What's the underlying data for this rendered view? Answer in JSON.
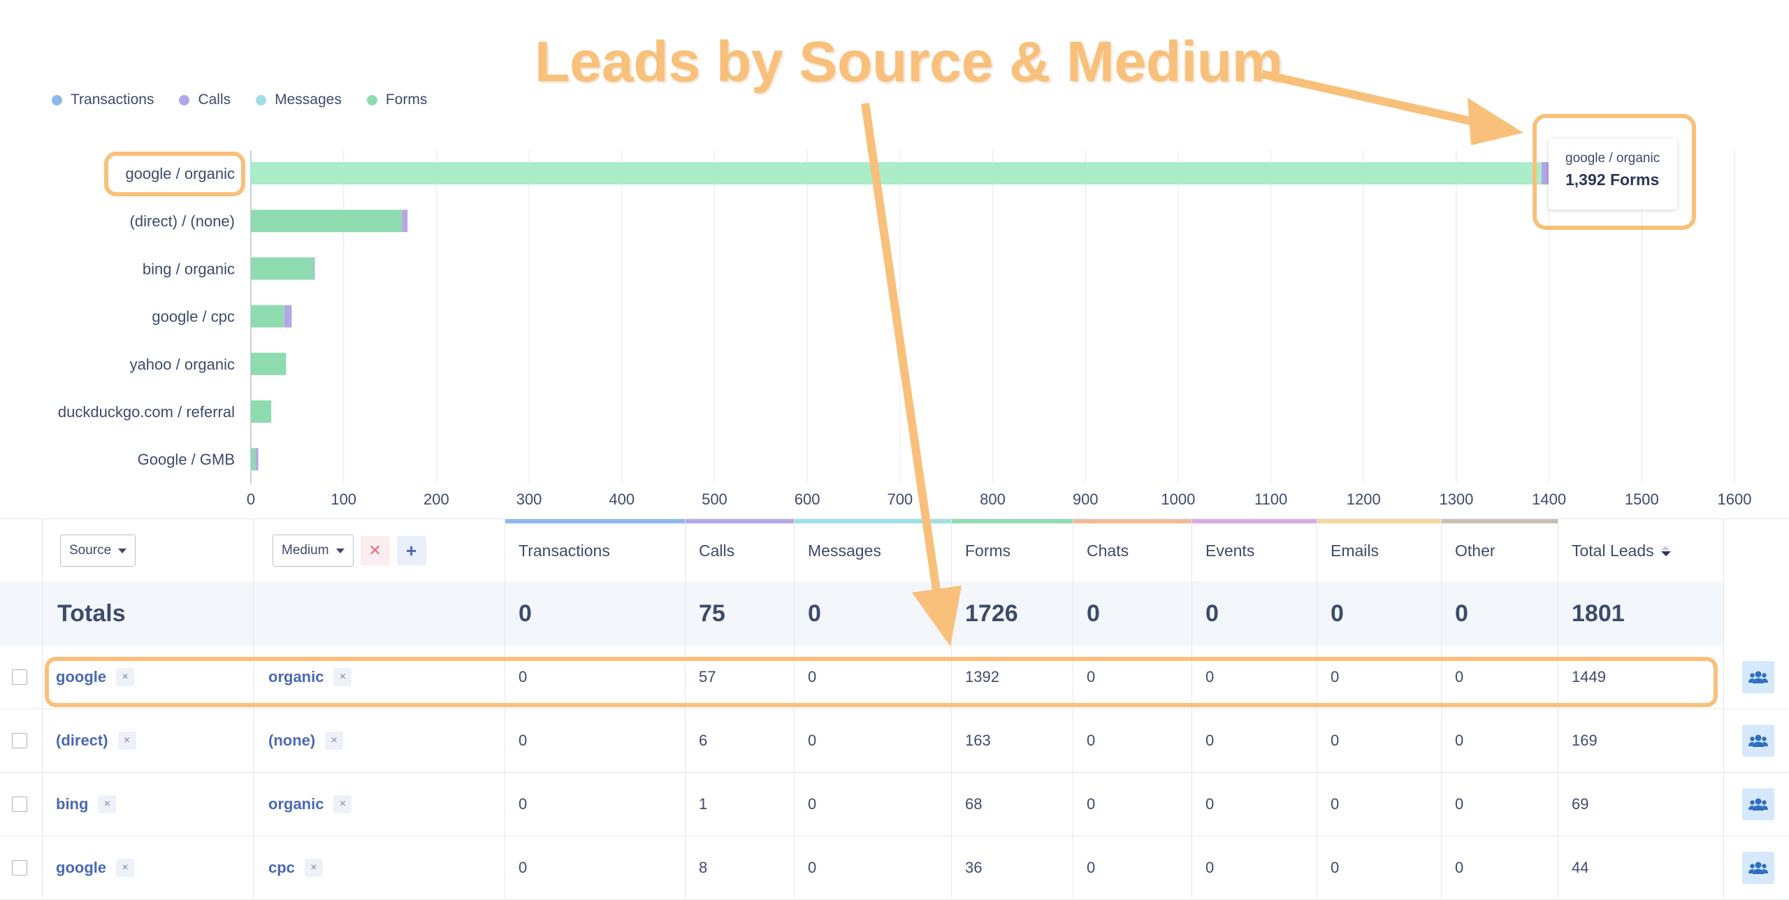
{
  "annotation": {
    "title": "Leads by Source & Medium"
  },
  "legend": [
    {
      "label": "Transactions",
      "color": "#8fb8ea"
    },
    {
      "label": "Calls",
      "color": "#b4a6e6"
    },
    {
      "label": "Messages",
      "color": "#9fdfe6"
    },
    {
      "label": "Forms",
      "color": "#8fdbb0"
    }
  ],
  "tooltip": {
    "line1": "google / organic",
    "line2": "1,392 Forms"
  },
  "chart_data": {
    "type": "bar",
    "orientation": "horizontal",
    "stacked": true,
    "categories": [
      "google / organic",
      "(direct) / (none)",
      "bing / organic",
      "google / cpc",
      "yahoo / organic",
      "duckduckgo.com / referral",
      "Google / GMB"
    ],
    "series": [
      {
        "name": "Transactions",
        "values": [
          0,
          0,
          0,
          0,
          0,
          0,
          0
        ]
      },
      {
        "name": "Forms",
        "values": [
          1392,
          163,
          68,
          36,
          38,
          22,
          5
        ]
      },
      {
        "name": "Calls",
        "values": [
          57,
          6,
          1,
          8,
          0,
          0,
          3
        ]
      },
      {
        "name": "Messages",
        "values": [
          0,
          0,
          0,
          0,
          0,
          0,
          0
        ]
      }
    ],
    "xticks": [
      "0",
      "100",
      "200",
      "300",
      "400",
      "500",
      "600",
      "700",
      "800",
      "900",
      "1000",
      "1100",
      "1200",
      "1300",
      "1400",
      "1500",
      "1600"
    ],
    "xlim": [
      0,
      1600
    ],
    "grid": true,
    "legend_position": "top-left"
  },
  "filters": {
    "source_label": "Source",
    "medium_label": "Medium",
    "remove_label": "✕",
    "add_label": "+"
  },
  "columns": [
    "Transactions",
    "Calls",
    "Messages",
    "Forms",
    "Chats",
    "Events",
    "Emails",
    "Other",
    "Total Leads"
  ],
  "column_colors": [
    "#8fb8ea",
    "#b4a6e6",
    "#9fdfe6",
    "#8fdbb0",
    "#f3b99a",
    "#d9a9e6",
    "#f6d79a",
    "#c9bfb1",
    "#ffffff"
  ],
  "totals": {
    "label": "Totals",
    "values": [
      "0",
      "75",
      "0",
      "1726",
      "0",
      "0",
      "0",
      "0",
      "1801"
    ]
  },
  "rows": [
    {
      "source": "google",
      "medium": "organic",
      "values": [
        "0",
        "57",
        "0",
        "1392",
        "0",
        "0",
        "0",
        "0",
        "1449"
      ]
    },
    {
      "source": "(direct)",
      "medium": "(none)",
      "values": [
        "0",
        "6",
        "0",
        "163",
        "0",
        "0",
        "0",
        "0",
        "169"
      ]
    },
    {
      "source": "bing",
      "medium": "organic",
      "values": [
        "0",
        "1",
        "0",
        "68",
        "0",
        "0",
        "0",
        "0",
        "69"
      ]
    },
    {
      "source": "google",
      "medium": "cpc",
      "values": [
        "0",
        "8",
        "0",
        "36",
        "0",
        "0",
        "0",
        "0",
        "44"
      ]
    }
  ],
  "remove_tag": "×"
}
